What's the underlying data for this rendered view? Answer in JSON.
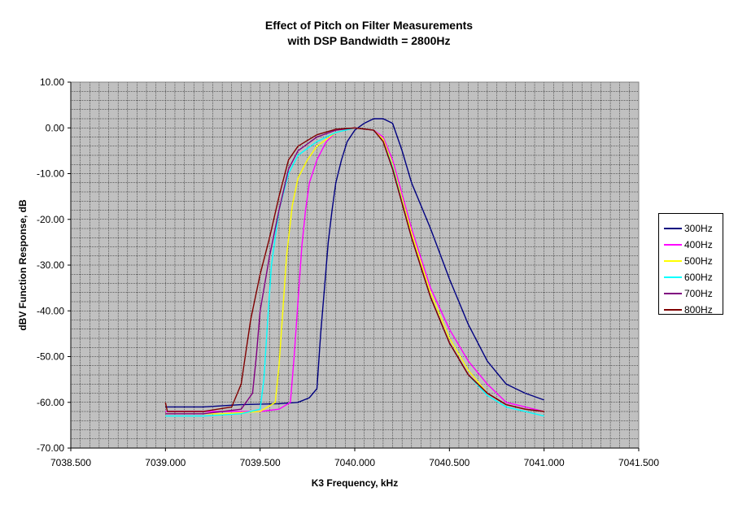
{
  "chart_data": {
    "type": "line",
    "title_line1": "Effect of Pitch on Filter Measurements",
    "title_line2": "with DSP Bandwidth = 2800Hz",
    "xlabel": "K3 Frequency, kHz",
    "ylabel": "dBV Function Response, dB",
    "xlim": [
      7038.5,
      7041.5
    ],
    "ylim": [
      -70,
      10
    ],
    "x_ticks": [
      "7038.500",
      "7039.000",
      "7039.500",
      "7040.000",
      "7040.500",
      "7041.000",
      "7041.500"
    ],
    "y_ticks": [
      "10.00",
      "0.00",
      "-10.00",
      "-20.00",
      "-30.00",
      "-40.00",
      "-50.00",
      "-60.00",
      "-70.00"
    ],
    "grid": true,
    "legend_position": "right",
    "series": [
      {
        "name": "300Hz",
        "color": "#000080",
        "points": [
          [
            7039.0,
            -61.0
          ],
          [
            7039.2,
            -61.0
          ],
          [
            7039.4,
            -60.5
          ],
          [
            7039.6,
            -60.3
          ],
          [
            7039.7,
            -60.0
          ],
          [
            7039.76,
            -59.0
          ],
          [
            7039.8,
            -57.0
          ],
          [
            7039.82,
            -45.0
          ],
          [
            7039.84,
            -35.0
          ],
          [
            7039.86,
            -25.0
          ],
          [
            7039.88,
            -18.0
          ],
          [
            7039.9,
            -12.0
          ],
          [
            7039.93,
            -7.0
          ],
          [
            7039.96,
            -3.0
          ],
          [
            7040.0,
            -0.5
          ],
          [
            7040.05,
            1.0
          ],
          [
            7040.1,
            2.0
          ],
          [
            7040.15,
            2.0
          ],
          [
            7040.2,
            1.0
          ],
          [
            7040.25,
            -5.0
          ],
          [
            7040.3,
            -12.0
          ],
          [
            7040.4,
            -22.0
          ],
          [
            7040.5,
            -33.0
          ],
          [
            7040.6,
            -43.0
          ],
          [
            7040.7,
            -51.0
          ],
          [
            7040.8,
            -56.0
          ],
          [
            7040.9,
            -58.0
          ],
          [
            7041.0,
            -59.5
          ]
        ]
      },
      {
        "name": "400Hz",
        "color": "#ff00ff",
        "points": [
          [
            7039.0,
            -62.0
          ],
          [
            7039.3,
            -62.0
          ],
          [
            7039.5,
            -62.0
          ],
          [
            7039.6,
            -61.5
          ],
          [
            7039.66,
            -60.0
          ],
          [
            7039.68,
            -50.0
          ],
          [
            7039.7,
            -38.0
          ],
          [
            7039.72,
            -26.0
          ],
          [
            7039.74,
            -18.0
          ],
          [
            7039.76,
            -12.0
          ],
          [
            7039.8,
            -7.0
          ],
          [
            7039.85,
            -3.0
          ],
          [
            7039.9,
            -1.0
          ],
          [
            7040.0,
            0.0
          ],
          [
            7040.1,
            -0.5
          ],
          [
            7040.15,
            -2.0
          ],
          [
            7040.2,
            -7.0
          ],
          [
            7040.3,
            -22.0
          ],
          [
            7040.4,
            -35.0
          ],
          [
            7040.5,
            -44.0
          ],
          [
            7040.6,
            -51.0
          ],
          [
            7040.7,
            -56.0
          ],
          [
            7040.8,
            -60.0
          ],
          [
            7040.9,
            -61.0
          ],
          [
            7041.0,
            -62.0
          ]
        ]
      },
      {
        "name": "500Hz",
        "color": "#ffff00",
        "points": [
          [
            7039.0,
            -62.5
          ],
          [
            7039.3,
            -62.5
          ],
          [
            7039.5,
            -62.0
          ],
          [
            7039.58,
            -60.0
          ],
          [
            7039.6,
            -52.0
          ],
          [
            7039.62,
            -40.0
          ],
          [
            7039.64,
            -28.0
          ],
          [
            7039.67,
            -17.0
          ],
          [
            7039.7,
            -11.0
          ],
          [
            7039.75,
            -7.0
          ],
          [
            7039.8,
            -4.0
          ],
          [
            7039.9,
            -1.0
          ],
          [
            7040.0,
            0.0
          ],
          [
            7040.1,
            -0.5
          ],
          [
            7040.15,
            -2.5
          ],
          [
            7040.2,
            -8.0
          ],
          [
            7040.3,
            -23.0
          ],
          [
            7040.4,
            -36.0
          ],
          [
            7040.5,
            -46.0
          ],
          [
            7040.6,
            -53.0
          ],
          [
            7040.7,
            -58.0
          ],
          [
            7040.8,
            -60.5
          ],
          [
            7040.9,
            -61.5
          ],
          [
            7041.0,
            -62.0
          ]
        ]
      },
      {
        "name": "600Hz",
        "color": "#00ffff",
        "points": [
          [
            7039.0,
            -63.0
          ],
          [
            7039.2,
            -63.0
          ],
          [
            7039.4,
            -62.5
          ],
          [
            7039.5,
            -61.5
          ],
          [
            7039.52,
            -55.0
          ],
          [
            7039.54,
            -42.0
          ],
          [
            7039.56,
            -30.0
          ],
          [
            7039.6,
            -18.0
          ],
          [
            7039.65,
            -10.0
          ],
          [
            7039.7,
            -6.0
          ],
          [
            7039.8,
            -3.0
          ],
          [
            7039.9,
            -1.0
          ],
          [
            7040.0,
            0.0
          ],
          [
            7040.1,
            -0.5
          ],
          [
            7040.15,
            -3.0
          ],
          [
            7040.2,
            -8.5
          ],
          [
            7040.3,
            -24.0
          ],
          [
            7040.4,
            -37.0
          ],
          [
            7040.5,
            -47.0
          ],
          [
            7040.6,
            -54.0
          ],
          [
            7040.7,
            -58.5
          ],
          [
            7040.8,
            -61.0
          ],
          [
            7040.9,
            -62.0
          ],
          [
            7041.0,
            -63.0
          ]
        ]
      },
      {
        "name": "700Hz",
        "color": "#800080",
        "points": [
          [
            7039.0,
            -62.5
          ],
          [
            7039.2,
            -62.5
          ],
          [
            7039.4,
            -61.5
          ],
          [
            7039.46,
            -58.0
          ],
          [
            7039.48,
            -50.0
          ],
          [
            7039.5,
            -40.0
          ],
          [
            7039.55,
            -28.0
          ],
          [
            7039.6,
            -18.0
          ],
          [
            7039.65,
            -9.0
          ],
          [
            7039.7,
            -5.0
          ],
          [
            7039.8,
            -2.0
          ],
          [
            7039.9,
            -0.5
          ],
          [
            7040.0,
            0.0
          ],
          [
            7040.1,
            -0.5
          ],
          [
            7040.15,
            -3.0
          ],
          [
            7040.2,
            -9.0
          ],
          [
            7040.3,
            -24.0
          ],
          [
            7040.4,
            -37.0
          ],
          [
            7040.5,
            -47.0
          ],
          [
            7040.6,
            -54.0
          ],
          [
            7040.7,
            -58.0
          ],
          [
            7040.8,
            -60.5
          ],
          [
            7040.9,
            -61.5
          ],
          [
            7041.0,
            -62.0
          ]
        ]
      },
      {
        "name": "800Hz",
        "color": "#800000",
        "points": [
          [
            7039.0,
            -60.0
          ],
          [
            7039.01,
            -62.0
          ],
          [
            7039.2,
            -62.0
          ],
          [
            7039.35,
            -61.0
          ],
          [
            7039.4,
            -56.0
          ],
          [
            7039.45,
            -42.0
          ],
          [
            7039.5,
            -32.0
          ],
          [
            7039.55,
            -24.0
          ],
          [
            7039.6,
            -15.0
          ],
          [
            7039.65,
            -7.0
          ],
          [
            7039.7,
            -4.0
          ],
          [
            7039.8,
            -1.5
          ],
          [
            7039.9,
            -0.3
          ],
          [
            7040.0,
            0.0
          ],
          [
            7040.1,
            -0.5
          ],
          [
            7040.15,
            -3.0
          ],
          [
            7040.2,
            -9.0
          ],
          [
            7040.3,
            -24.0
          ],
          [
            7040.4,
            -37.0
          ],
          [
            7040.5,
            -47.0
          ],
          [
            7040.6,
            -54.0
          ],
          [
            7040.7,
            -58.0
          ],
          [
            7040.8,
            -60.5
          ],
          [
            7040.9,
            -61.5
          ],
          [
            7041.0,
            -62.0
          ]
        ]
      }
    ]
  }
}
